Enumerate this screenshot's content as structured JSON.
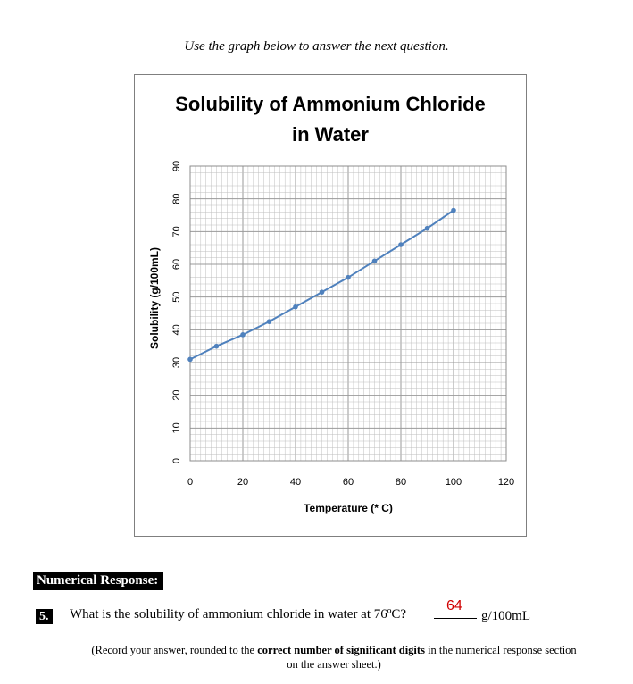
{
  "instruction": "Use the graph below to answer the next question.",
  "chart_data": {
    "type": "line",
    "title_line1": "Solubility of Ammonium Chloride",
    "title_line2": "in Water",
    "xlabel": "Temperature (* C)",
    "ylabel": "Solubility (g/100mL)",
    "xlim": [
      0,
      120
    ],
    "ylim": [
      0,
      90
    ],
    "x_ticks": [
      0,
      20,
      40,
      60,
      80,
      100,
      120
    ],
    "y_ticks": [
      0,
      10,
      20,
      30,
      40,
      50,
      60,
      70,
      80,
      90
    ],
    "grid": true,
    "series_color": "#4f81bd",
    "x": [
      0,
      10,
      20,
      30,
      40,
      50,
      60,
      70,
      80,
      90,
      100
    ],
    "values": [
      31,
      35,
      38.5,
      42.5,
      47,
      51.5,
      56,
      61,
      66,
      71,
      76.5
    ]
  },
  "section_label": "Numerical Response:",
  "question": {
    "number": "5.",
    "text": "What is the solubility of ammonium chloride in water at 76ºC?",
    "answer": "64",
    "unit": "g/100mL"
  },
  "note": {
    "prefix": "(Record your answer, rounded to the ",
    "bold": "correct number of significant digits",
    "suffix": " in the numerical response section on the answer sheet.)"
  },
  "colors": {
    "answer": "#d00000",
    "series": "#4f81bd",
    "grid": "#bfbfbf",
    "frame": "#7f7f7f"
  }
}
